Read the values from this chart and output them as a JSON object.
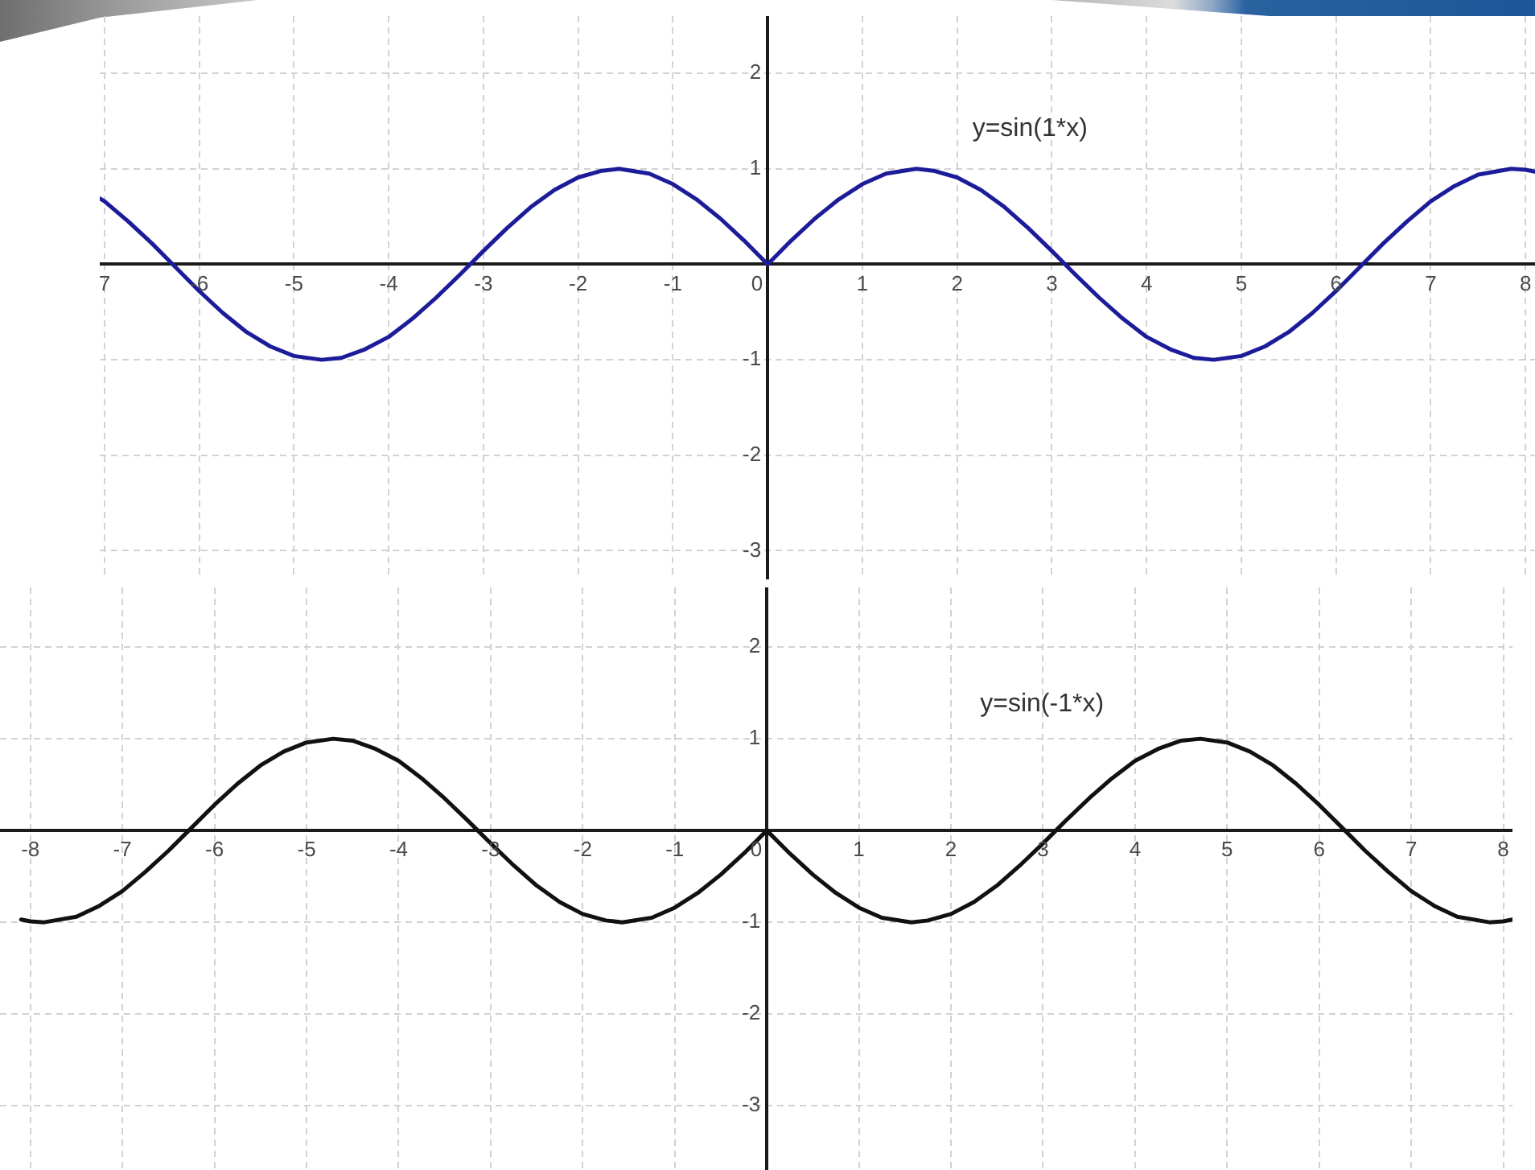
{
  "chart_data": [
    {
      "type": "line",
      "x": [
        -7.05,
        -7,
        -6.75,
        -6.5,
        -6.28,
        -6,
        -5.75,
        -5.5,
        -5.25,
        -5,
        -4.71,
        -4.5,
        -4.25,
        -4,
        -3.75,
        -3.5,
        -3.25,
        -3.14,
        -3,
        -2.75,
        -2.5,
        -2.25,
        -2,
        -1.75,
        -1.57,
        -1.25,
        -1,
        -0.75,
        -0.5,
        -0.25,
        0,
        0.25,
        0.5,
        0.75,
        1,
        1.25,
        1.57,
        1.75,
        2,
        2.25,
        2.5,
        2.75,
        3,
        3.14,
        3.25,
        3.5,
        3.75,
        4,
        4.25,
        4.5,
        4.71,
        5,
        5.25,
        5.5,
        5.75,
        6,
        6.28,
        6.5,
        6.75,
        7,
        7.25,
        7.5,
        7.85,
        8,
        8.1
      ],
      "series": [
        {
          "name": "y=sin(1*x)",
          "color": "#1c1c9a",
          "values": [
            0.69,
            0.66,
            0.45,
            0.22,
            0,
            -0.28,
            -0.51,
            -0.71,
            -0.86,
            -0.96,
            -1,
            -0.98,
            -0.89,
            -0.76,
            -0.57,
            -0.35,
            -0.11,
            0,
            0.14,
            0.38,
            0.6,
            0.78,
            0.91,
            0.98,
            1,
            0.95,
            0.84,
            0.68,
            0.48,
            0.25,
            0,
            0.25,
            0.48,
            0.68,
            0.84,
            0.95,
            1,
            0.98,
            0.91,
            0.78,
            0.6,
            0.38,
            0.14,
            0,
            -0.11,
            -0.35,
            -0.57,
            -0.76,
            -0.89,
            -0.98,
            -1,
            -0.96,
            -0.86,
            -0.71,
            -0.51,
            -0.28,
            0,
            0.22,
            0.45,
            0.66,
            0.82,
            0.94,
            1,
            0.99,
            0.97
          ]
        }
      ],
      "xlim": [
        -7.05,
        8.1
      ],
      "ylim": [
        -3.3,
        2.6
      ],
      "xticks": [
        {
          "value": -7,
          "label": "7"
        },
        -6,
        -5,
        -4,
        -3,
        -2,
        -1,
        0,
        1,
        2,
        3,
        4,
        5,
        6,
        7,
        8
      ],
      "yticks": [
        -3,
        -2,
        -1,
        {
          "value": 0,
          "label": null
        },
        1,
        2
      ],
      "grid": true
    },
    {
      "type": "line",
      "x": [
        -8.1,
        -8,
        -7.85,
        -7.5,
        -7.25,
        -7,
        -6.75,
        -6.5,
        -6.28,
        -6,
        -5.75,
        -5.5,
        -5.25,
        -5,
        -4.71,
        -4.5,
        -4.25,
        -4,
        -3.75,
        -3.5,
        -3.25,
        -3.14,
        -3,
        -2.75,
        -2.5,
        -2.25,
        -2,
        -1.75,
        -1.57,
        -1.25,
        -1,
        -0.75,
        -0.5,
        -0.25,
        0,
        0.25,
        0.5,
        0.75,
        1,
        1.25,
        1.57,
        1.75,
        2,
        2.25,
        2.5,
        2.75,
        3,
        3.14,
        3.25,
        3.5,
        3.75,
        4,
        4.25,
        4.5,
        4.71,
        5,
        5.25,
        5.5,
        5.75,
        6,
        6.28,
        6.5,
        6.75,
        7,
        7.25,
        7.5,
        7.85,
        8,
        8.1
      ],
      "series": [
        {
          "name": "y=sin(-1*x)",
          "color": "#111111",
          "values": [
            -0.97,
            -0.99,
            -1,
            -0.94,
            -0.82,
            -0.66,
            -0.45,
            -0.22,
            0,
            0.28,
            0.51,
            0.71,
            0.86,
            0.96,
            1,
            0.98,
            0.89,
            0.76,
            0.57,
            0.35,
            0.11,
            0,
            -0.14,
            -0.38,
            -0.6,
            -0.78,
            -0.91,
            -0.98,
            -1,
            -0.95,
            -0.84,
            -0.68,
            -0.48,
            -0.25,
            0,
            -0.25,
            -0.48,
            -0.68,
            -0.84,
            -0.95,
            -1,
            -0.98,
            -0.91,
            -0.78,
            -0.6,
            -0.38,
            -0.14,
            0,
            0.11,
            0.35,
            0.57,
            0.76,
            0.89,
            0.98,
            1,
            0.96,
            0.86,
            0.71,
            0.51,
            0.28,
            0,
            -0.22,
            -0.45,
            -0.66,
            -0.82,
            -0.94,
            -1,
            -0.99,
            -0.97
          ]
        }
      ],
      "xlim": [
        -8.33,
        8.1
      ],
      "ylim": [
        -3.7,
        2.65
      ],
      "xticks": [
        -8,
        -7,
        -6,
        -5,
        -4,
        -3,
        -2,
        -1,
        0,
        1,
        2,
        3,
        4,
        5,
        6,
        7,
        8
      ],
      "yticks": [
        -3,
        -2,
        -1,
        {
          "value": 0,
          "label": null
        },
        1,
        2
      ],
      "grid": true
    }
  ]
}
